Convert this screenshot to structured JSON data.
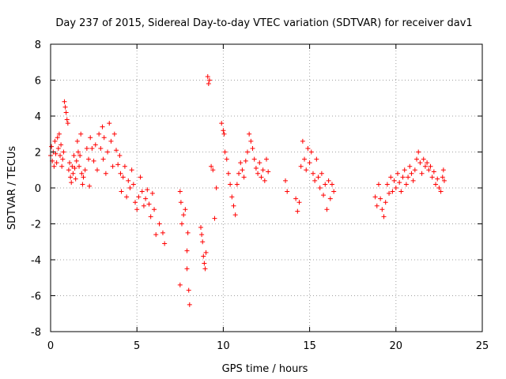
{
  "chart_data": {
    "type": "scatter",
    "title": "Day 237 of 2015, Sidereal Day-to-day VTEC variation (SDTVAR) for receiver dav1",
    "xlabel": "GPS time / hours",
    "ylabel": "SDTVAR / TECUs",
    "xlim": [
      0,
      25
    ],
    "ylim": [
      -8,
      8
    ],
    "xticks": [
      0,
      5,
      10,
      15,
      20,
      25
    ],
    "yticks": [
      -8,
      -6,
      -4,
      -2,
      0,
      2,
      4,
      6,
      8
    ],
    "grid": true,
    "marker": "+",
    "series": [
      {
        "name": "SDTVAR",
        "color": "#ff0000",
        "points": [
          [
            0.0,
            1.8
          ],
          [
            0.05,
            2.3
          ],
          [
            0.1,
            1.5
          ],
          [
            0.15,
            2.0
          ],
          [
            0.2,
            1.2
          ],
          [
            0.25,
            2.6
          ],
          [
            0.3,
            1.9
          ],
          [
            0.35,
            1.4
          ],
          [
            0.4,
            2.8
          ],
          [
            0.45,
            2.2
          ],
          [
            0.5,
            3.0
          ],
          [
            0.55,
            1.8
          ],
          [
            0.6,
            2.4
          ],
          [
            0.65,
            1.2
          ],
          [
            0.7,
            1.6
          ],
          [
            0.75,
            2.0
          ],
          [
            0.8,
            4.8
          ],
          [
            0.85,
            4.5
          ],
          [
            0.9,
            4.2
          ],
          [
            0.95,
            3.8
          ],
          [
            1.0,
            3.6
          ],
          [
            1.05,
            1.0
          ],
          [
            1.1,
            1.4
          ],
          [
            1.15,
            0.6
          ],
          [
            1.2,
            0.3
          ],
          [
            1.25,
            1.2
          ],
          [
            1.3,
            0.8
          ],
          [
            1.35,
            1.8
          ],
          [
            1.4,
            1.1
          ],
          [
            1.45,
            0.5
          ],
          [
            1.5,
            1.5
          ],
          [
            1.55,
            2.6
          ],
          [
            1.6,
            2.0
          ],
          [
            1.65,
            1.2
          ],
          [
            1.7,
            1.8
          ],
          [
            1.75,
            3.0
          ],
          [
            1.8,
            0.8
          ],
          [
            1.85,
            0.2
          ],
          [
            1.9,
            0.6
          ],
          [
            2.0,
            1.0
          ],
          [
            2.1,
            2.2
          ],
          [
            2.2,
            1.6
          ],
          [
            2.25,
            0.1
          ],
          [
            2.3,
            2.8
          ],
          [
            2.4,
            2.2
          ],
          [
            2.5,
            1.5
          ],
          [
            2.6,
            2.4
          ],
          [
            2.7,
            1.0
          ],
          [
            2.8,
            3.0
          ],
          [
            2.9,
            2.2
          ],
          [
            3.0,
            3.4
          ],
          [
            3.05,
            1.6
          ],
          [
            3.1,
            2.8
          ],
          [
            3.2,
            0.8
          ],
          [
            3.3,
            2.0
          ],
          [
            3.4,
            3.6
          ],
          [
            3.5,
            2.6
          ],
          [
            3.6,
            1.2
          ],
          [
            3.7,
            3.0
          ],
          [
            3.8,
            2.1
          ],
          [
            3.9,
            1.3
          ],
          [
            4.0,
            1.8
          ],
          [
            4.05,
            0.8
          ],
          [
            4.1,
            -0.2
          ],
          [
            4.2,
            0.6
          ],
          [
            4.3,
            1.2
          ],
          [
            4.4,
            -0.5
          ],
          [
            4.5,
            0.4
          ],
          [
            4.6,
            0.0
          ],
          [
            4.7,
            1.0
          ],
          [
            4.8,
            0.2
          ],
          [
            4.9,
            -0.8
          ],
          [
            5.0,
            -1.2
          ],
          [
            5.1,
            -0.5
          ],
          [
            5.2,
            0.6
          ],
          [
            5.3,
            -0.2
          ],
          [
            5.4,
            -1.0
          ],
          [
            5.5,
            -0.6
          ],
          [
            5.6,
            -0.1
          ],
          [
            5.7,
            -0.9
          ],
          [
            5.8,
            -1.6
          ],
          [
            5.9,
            -0.3
          ],
          [
            6.0,
            -1.2
          ],
          [
            6.1,
            -2.6
          ],
          [
            6.3,
            -2.0
          ],
          [
            6.5,
            -2.5
          ],
          [
            6.6,
            -3.1
          ],
          [
            7.5,
            -0.2
          ],
          [
            7.55,
            -0.8
          ],
          [
            7.6,
            -2.0
          ],
          [
            7.7,
            -1.5
          ],
          [
            7.8,
            -1.2
          ],
          [
            7.9,
            -3.5
          ],
          [
            7.95,
            -2.5
          ],
          [
            8.0,
            -5.7
          ],
          [
            8.05,
            -6.5
          ],
          [
            7.5,
            -5.4
          ],
          [
            7.9,
            -4.5
          ],
          [
            8.7,
            -2.2
          ],
          [
            8.75,
            -2.6
          ],
          [
            8.8,
            -3.0
          ],
          [
            8.85,
            -3.8
          ],
          [
            8.9,
            -4.2
          ],
          [
            8.95,
            -4.5
          ],
          [
            9.0,
            -3.6
          ],
          [
            9.1,
            6.2
          ],
          [
            9.15,
            5.8
          ],
          [
            9.2,
            6.0
          ],
          [
            9.3,
            1.2
          ],
          [
            9.4,
            1.0
          ],
          [
            9.5,
            -1.7
          ],
          [
            9.6,
            0.0
          ],
          [
            9.9,
            3.6
          ],
          [
            10.0,
            3.2
          ],
          [
            10.05,
            3.0
          ],
          [
            10.1,
            2.0
          ],
          [
            10.2,
            1.6
          ],
          [
            10.3,
            0.8
          ],
          [
            10.4,
            0.2
          ],
          [
            10.5,
            -0.5
          ],
          [
            10.6,
            -1.0
          ],
          [
            10.7,
            -1.5
          ],
          [
            10.8,
            0.2
          ],
          [
            10.9,
            0.8
          ],
          [
            11.0,
            1.4
          ],
          [
            11.1,
            1.0
          ],
          [
            11.2,
            0.6
          ],
          [
            11.3,
            1.5
          ],
          [
            11.4,
            2.0
          ],
          [
            11.5,
            3.0
          ],
          [
            11.6,
            2.6
          ],
          [
            11.7,
            2.2
          ],
          [
            11.8,
            1.6
          ],
          [
            11.9,
            1.1
          ],
          [
            12.0,
            0.8
          ],
          [
            12.1,
            1.4
          ],
          [
            12.2,
            0.6
          ],
          [
            12.3,
            1.0
          ],
          [
            12.4,
            0.4
          ],
          [
            12.5,
            1.6
          ],
          [
            12.6,
            0.9
          ],
          [
            13.6,
            0.4
          ],
          [
            13.7,
            -0.2
          ],
          [
            14.2,
            -0.6
          ],
          [
            14.3,
            -1.3
          ],
          [
            14.4,
            -0.8
          ],
          [
            14.5,
            1.2
          ],
          [
            14.6,
            2.6
          ],
          [
            14.7,
            1.6
          ],
          [
            14.8,
            1.0
          ],
          [
            14.9,
            2.2
          ],
          [
            15.0,
            1.4
          ],
          [
            15.1,
            2.0
          ],
          [
            15.2,
            0.8
          ],
          [
            15.3,
            0.4
          ],
          [
            15.4,
            1.6
          ],
          [
            15.5,
            0.6
          ],
          [
            15.6,
            0.0
          ],
          [
            15.7,
            0.8
          ],
          [
            15.8,
            -0.4
          ],
          [
            15.9,
            0.2
          ],
          [
            16.0,
            -1.2
          ],
          [
            16.1,
            0.4
          ],
          [
            16.2,
            -0.6
          ],
          [
            16.3,
            0.2
          ],
          [
            16.4,
            -0.2
          ],
          [
            18.8,
            -0.5
          ],
          [
            18.9,
            -1.0
          ],
          [
            19.0,
            0.2
          ],
          [
            19.1,
            -0.6
          ],
          [
            19.2,
            -1.2
          ],
          [
            19.3,
            -1.6
          ],
          [
            19.4,
            -0.8
          ],
          [
            19.5,
            0.2
          ],
          [
            19.6,
            -0.3
          ],
          [
            19.7,
            0.6
          ],
          [
            19.8,
            -0.2
          ],
          [
            19.9,
            0.4
          ],
          [
            20.0,
            0.0
          ],
          [
            20.1,
            0.8
          ],
          [
            20.2,
            0.3
          ],
          [
            20.3,
            -0.2
          ],
          [
            20.4,
            0.6
          ],
          [
            20.5,
            1.0
          ],
          [
            20.6,
            0.2
          ],
          [
            20.7,
            0.6
          ],
          [
            20.8,
            1.2
          ],
          [
            20.9,
            0.8
          ],
          [
            21.0,
            0.4
          ],
          [
            21.1,
            1.0
          ],
          [
            21.2,
            1.6
          ],
          [
            21.3,
            2.0
          ],
          [
            21.4,
            1.4
          ],
          [
            21.5,
            0.8
          ],
          [
            21.6,
            1.6
          ],
          [
            21.7,
            1.2
          ],
          [
            21.8,
            1.4
          ],
          [
            21.9,
            1.0
          ],
          [
            22.0,
            1.2
          ],
          [
            22.1,
            0.6
          ],
          [
            22.2,
            0.9
          ],
          [
            22.3,
            0.2
          ],
          [
            22.4,
            0.5
          ],
          [
            22.5,
            0.0
          ],
          [
            22.6,
            -0.2
          ],
          [
            22.7,
            0.6
          ],
          [
            22.75,
            1.0
          ],
          [
            22.8,
            0.4
          ]
        ]
      }
    ]
  }
}
